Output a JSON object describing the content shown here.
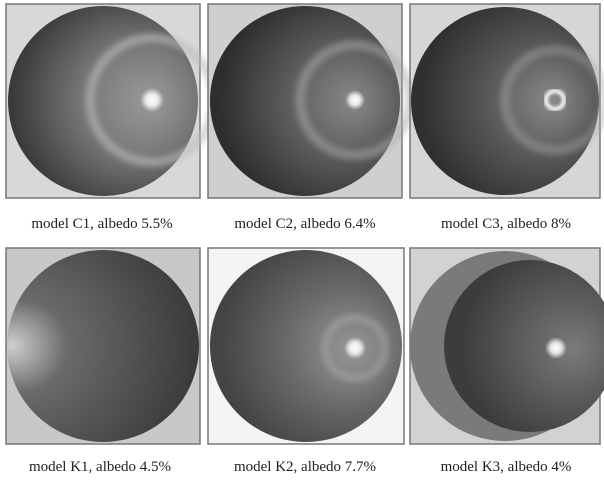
{
  "figure": {
    "panels": [
      {
        "caption": "model C1, albedo 5.5%"
      },
      {
        "caption": "model C2, albedo 6.4%"
      },
      {
        "caption": "model C3, albedo 8%"
      },
      {
        "caption": "model K1, albedo 4.5%"
      },
      {
        "caption": "model K2, albedo 7.7%"
      },
      {
        "caption": "model K3, albedo 4%"
      }
    ]
  }
}
